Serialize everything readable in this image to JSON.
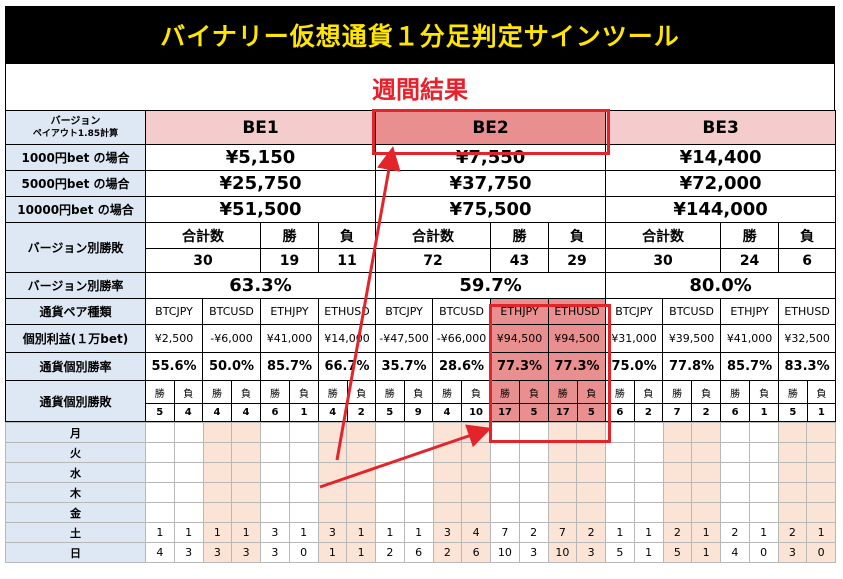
{
  "title": "バイナリー仮想通貨１分足判定サインツール",
  "subtitle": "週間結果",
  "labels": {
    "version": "バージョン",
    "payout": "ペイアウト1.85計算",
    "bet1000": "1000円bet の場合",
    "bet5000": "5000円bet の場合",
    "bet10000": "10000円bet の場合",
    "winloss": "バージョン別勝敗",
    "winrate": "バージョン別勝率",
    "pairtype": "通貨ペア種類",
    "profit": "個別利益(１万bet)",
    "pairrate": "通貨個別勝率",
    "pairwl": "通貨個別勝敗"
  },
  "headers": {
    "total": "合計数",
    "win": "勝",
    "loss": "負"
  },
  "versions": [
    {
      "name": "BE1",
      "bet1000": "¥5,150",
      "bet5000": "¥25,750",
      "bet10000": "¥51,500",
      "total": "30",
      "wins": "19",
      "losses": "11",
      "rate": "63.3%",
      "pairs": [
        {
          "name": "BTCJPY",
          "profit": "¥2,500",
          "rate": "55.6%",
          "w": "5",
          "l": "4"
        },
        {
          "name": "BTCUSD",
          "profit": "-¥6,000",
          "rate": "50.0%",
          "w": "4",
          "l": "4"
        },
        {
          "name": "ETHJPY",
          "profit": "¥41,000",
          "rate": "85.7%",
          "w": "6",
          "l": "1"
        },
        {
          "name": "ETHUSD",
          "profit": "¥14,000",
          "rate": "66.7%",
          "w": "4",
          "l": "2"
        }
      ]
    },
    {
      "name": "BE2",
      "bet1000": "¥7,550",
      "bet5000": "¥37,750",
      "bet10000": "¥75,500",
      "total": "72",
      "wins": "43",
      "losses": "29",
      "rate": "59.7%",
      "pairs": [
        {
          "name": "BTCJPY",
          "profit": "-¥47,500",
          "rate": "35.7%",
          "w": "5",
          "l": "9"
        },
        {
          "name": "BTCUSD",
          "profit": "-¥66,000",
          "rate": "28.6%",
          "w": "4",
          "l": "10"
        },
        {
          "name": "ETHJPY",
          "profit": "¥94,500",
          "rate": "77.3%",
          "w": "17",
          "l": "5"
        },
        {
          "name": "ETHUSD",
          "profit": "¥94,500",
          "rate": "77.3%",
          "w": "17",
          "l": "5"
        }
      ]
    },
    {
      "name": "BE3",
      "bet1000": "¥14,400",
      "bet5000": "¥72,000",
      "bet10000": "¥144,000",
      "total": "30",
      "wins": "24",
      "losses": "6",
      "rate": "80.0%",
      "pairs": [
        {
          "name": "BTCJPY",
          "profit": "¥31,000",
          "rate": "75.0%",
          "w": "6",
          "l": "2"
        },
        {
          "name": "BTCUSD",
          "profit": "¥39,500",
          "rate": "77.8%",
          "w": "7",
          "l": "2"
        },
        {
          "name": "ETHJPY",
          "profit": "¥41,000",
          "rate": "85.7%",
          "w": "6",
          "l": "1"
        },
        {
          "name": "ETHUSD",
          "profit": "¥32,500",
          "rate": "83.3%",
          "w": "5",
          "l": "1"
        }
      ]
    }
  ],
  "days": [
    {
      "day": "月",
      "values": [
        "",
        "",
        "",
        "",
        "",
        "",
        "",
        "",
        "",
        "",
        "",
        "",
        "",
        "",
        "",
        "",
        "",
        "",
        "",
        "",
        "",
        "",
        "",
        ""
      ]
    },
    {
      "day": "火",
      "values": [
        "",
        "",
        "",
        "",
        "",
        "",
        "",
        "",
        "",
        "",
        "",
        "",
        "",
        "",
        "",
        "",
        "",
        "",
        "",
        "",
        "",
        "",
        "",
        ""
      ]
    },
    {
      "day": "水",
      "values": [
        "",
        "",
        "",
        "",
        "",
        "",
        "",
        "",
        "",
        "",
        "",
        "",
        "",
        "",
        "",
        "",
        "",
        "",
        "",
        "",
        "",
        "",
        "",
        ""
      ]
    },
    {
      "day": "木",
      "values": [
        "",
        "",
        "",
        "",
        "",
        "",
        "",
        "",
        "",
        "",
        "",
        "",
        "",
        "",
        "",
        "",
        "",
        "",
        "",
        "",
        "",
        "",
        "",
        ""
      ]
    },
    {
      "day": "金",
      "values": [
        "",
        "",
        "",
        "",
        "",
        "",
        "",
        "",
        "",
        "",
        "",
        "",
        "",
        "",
        "",
        "",
        "",
        "",
        "",
        "",
        "",
        "",
        "",
        ""
      ]
    },
    {
      "day": "土",
      "values": [
        "1",
        "1",
        "1",
        "1",
        "3",
        "1",
        "3",
        "1",
        "1",
        "1",
        "3",
        "4",
        "7",
        "2",
        "7",
        "2",
        "1",
        "1",
        "2",
        "1",
        "2",
        "1",
        "2",
        "1"
      ]
    },
    {
      "day": "日",
      "values": [
        "4",
        "3",
        "3",
        "3",
        "3",
        "0",
        "1",
        "1",
        "2",
        "6",
        "2",
        "6",
        "10",
        "3",
        "10",
        "3",
        "5",
        "1",
        "5",
        "1",
        "4",
        "0",
        "3",
        "0"
      ]
    }
  ],
  "colors": {
    "title_bg": "#000000",
    "title_text": "#ffe600",
    "accent": "#e3242b",
    "label_bg": "#dde8f4",
    "version_bg": "#f4cccc",
    "highlight_bg": "#ea8f8f",
    "pale_col": "#fbe3d6"
  }
}
